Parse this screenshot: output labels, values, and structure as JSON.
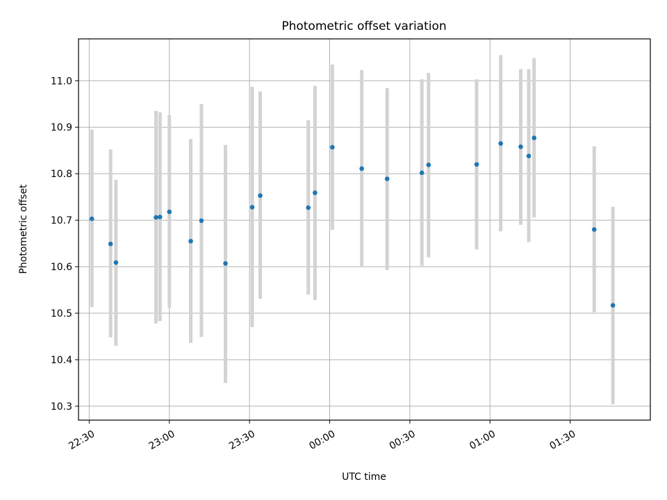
{
  "chart_data": {
    "type": "scatter",
    "title": "Photometric offset variation",
    "xlabel": "UTC time",
    "ylabel": "Photometric offset",
    "xlim": [
      "22:26",
      "02:00"
    ],
    "ylim": [
      10.27,
      11.09
    ],
    "x_ticks": [
      "22:30",
      "23:00",
      "23:30",
      "00:00",
      "00:30",
      "01:00",
      "01:30"
    ],
    "y_ticks": [
      "10.3",
      "10.4",
      "10.5",
      "10.6",
      "10.7",
      "10.8",
      "10.9",
      "11.0"
    ],
    "grid": true,
    "colors": {
      "point": "#1f77b4",
      "errorbar": "#d3d3d3"
    },
    "series": [
      {
        "points": [
          {
            "time": "22:31",
            "y": 10.703,
            "ylow": 10.513,
            "yhigh": 10.895
          },
          {
            "time": "22:38",
            "y": 10.649,
            "ylow": 10.448,
            "yhigh": 10.852
          },
          {
            "time": "22:40",
            "y": 10.609,
            "ylow": 10.43,
            "yhigh": 10.787
          },
          {
            "time": "22:55",
            "y": 10.706,
            "ylow": 10.478,
            "yhigh": 10.935
          },
          {
            "time": "22:56.5",
            "y": 10.707,
            "ylow": 10.483,
            "yhigh": 10.932
          },
          {
            "time": "23:00",
            "y": 10.718,
            "ylow": 10.512,
            "yhigh": 10.926
          },
          {
            "time": "23:08",
            "y": 10.655,
            "ylow": 10.436,
            "yhigh": 10.875
          },
          {
            "time": "23:12",
            "y": 10.699,
            "ylow": 10.449,
            "yhigh": 10.95
          },
          {
            "time": "23:21",
            "y": 10.607,
            "ylow": 10.35,
            "yhigh": 10.862
          },
          {
            "time": "23:31",
            "y": 10.728,
            "ylow": 10.47,
            "yhigh": 10.987
          },
          {
            "time": "23:34",
            "y": 10.753,
            "ylow": 10.531,
            "yhigh": 10.977
          },
          {
            "time": "23:52",
            "y": 10.727,
            "ylow": 10.54,
            "yhigh": 10.915
          },
          {
            "time": "23:54.5",
            "y": 10.759,
            "ylow": 10.528,
            "yhigh": 10.989
          },
          {
            "time": "00:01",
            "y": 10.857,
            "ylow": 10.679,
            "yhigh": 11.035
          },
          {
            "time": "00:12",
            "y": 10.811,
            "ylow": 10.6,
            "yhigh": 11.023
          },
          {
            "time": "00:21.5",
            "y": 10.789,
            "ylow": 10.593,
            "yhigh": 10.984
          },
          {
            "time": "00:34.5",
            "y": 10.802,
            "ylow": 10.602,
            "yhigh": 11.003
          },
          {
            "time": "00:37",
            "y": 10.819,
            "ylow": 10.62,
            "yhigh": 11.017
          },
          {
            "time": "00:55",
            "y": 10.82,
            "ylow": 10.637,
            "yhigh": 11.003
          },
          {
            "time": "01:04",
            "y": 10.865,
            "ylow": 10.676,
            "yhigh": 11.055
          },
          {
            "time": "01:11.5",
            "y": 10.858,
            "ylow": 10.69,
            "yhigh": 11.025
          },
          {
            "time": "01:14.5",
            "y": 10.838,
            "ylow": 10.653,
            "yhigh": 11.025
          },
          {
            "time": "01:16.5",
            "y": 10.877,
            "ylow": 10.706,
            "yhigh": 11.049
          },
          {
            "time": "01:39",
            "y": 10.68,
            "ylow": 10.502,
            "yhigh": 10.859
          },
          {
            "time": "01:46",
            "y": 10.517,
            "ylow": 10.304,
            "yhigh": 10.729
          }
        ]
      }
    ]
  }
}
